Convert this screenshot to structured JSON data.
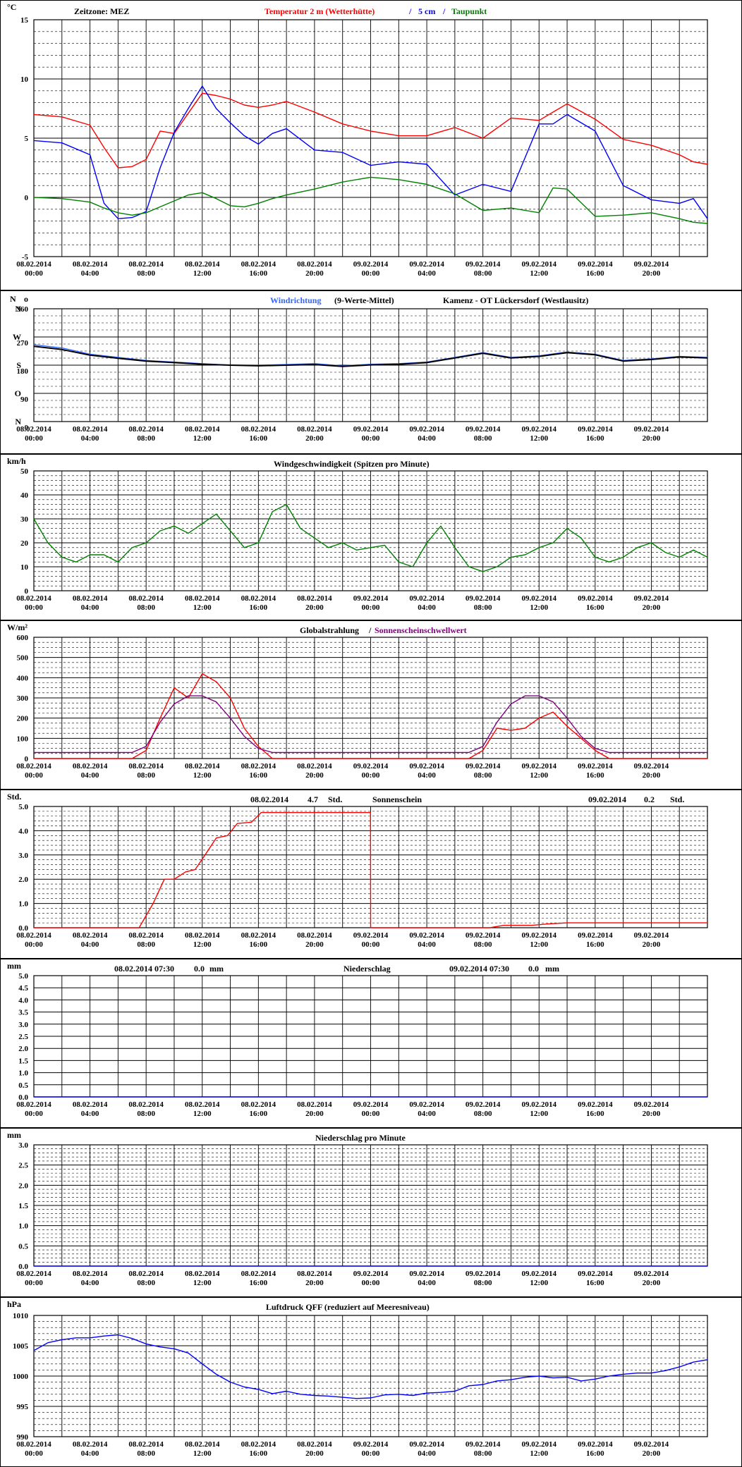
{
  "x_ticks": [
    {
      "date": "08.02.2014",
      "time": "00:00"
    },
    {
      "date": "08.02.2014",
      "time": "04:00"
    },
    {
      "date": "08.02.2014",
      "time": "08:00"
    },
    {
      "date": "08.02.2014",
      "time": "12:00"
    },
    {
      "date": "08.02.2014",
      "time": "16:00"
    },
    {
      "date": "08.02.2014",
      "time": "20:00"
    },
    {
      "date": "09.02.2014",
      "time": "00:00"
    },
    {
      "date": "09.02.2014",
      "time": "04:00"
    },
    {
      "date": "09.02.2014",
      "time": "08:00"
    },
    {
      "date": "09.02.2014",
      "time": "12:00"
    },
    {
      "date": "09.02.2014",
      "time": "16:00"
    },
    {
      "date": "09.02.2014",
      "time": "20:00"
    }
  ],
  "colors": {
    "red": "#ff0000",
    "blue": "#0000ff",
    "green": "#008000",
    "lightblue": "#3366ff",
    "black": "#000000",
    "purple": "#800080"
  },
  "chart_data": [
    {
      "type": "line",
      "unit": "°C",
      "header": {
        "zone": "Zeitzone: MEZ",
        "t2m": "Temperatur 2 m (Wetterhütte)",
        "sep": "/",
        "t5": "5 cm",
        "sep2": "/",
        "dew": "Taupunkt"
      },
      "ylim": [
        -5,
        15
      ],
      "yticks": [
        -5,
        0,
        5,
        10,
        15
      ],
      "x_hours": [
        0,
        2,
        4,
        5,
        6,
        7,
        8,
        9,
        10,
        11,
        12,
        13,
        14,
        15,
        16,
        17,
        18,
        20,
        22,
        24,
        26,
        28,
        30,
        32,
        34,
        36,
        37,
        38,
        40,
        42,
        44,
        46,
        47,
        48
      ],
      "series": [
        {
          "name": "Temperatur 2 m (Wetterhütte)",
          "color": "red",
          "values": [
            7.0,
            6.8,
            6.1,
            4.2,
            2.5,
            2.6,
            3.2,
            5.6,
            5.4,
            7.1,
            8.8,
            8.6,
            8.3,
            7.8,
            7.6,
            7.8,
            8.1,
            7.2,
            6.2,
            5.6,
            5.2,
            5.2,
            5.9,
            5.0,
            6.7,
            6.5,
            7.2,
            7.9,
            6.6,
            4.9,
            4.4,
            3.6,
            3.0,
            2.8
          ]
        },
        {
          "name": "5 cm",
          "color": "blue",
          "values": [
            4.8,
            4.6,
            3.6,
            -0.5,
            -1.8,
            -1.7,
            -1.2,
            2.5,
            5.5,
            7.5,
            9.4,
            7.5,
            6.3,
            5.2,
            4.5,
            5.4,
            5.8,
            4.0,
            3.8,
            2.7,
            3.0,
            2.8,
            0.2,
            1.1,
            0.5,
            6.2,
            6.2,
            7.0,
            5.6,
            1.0,
            -0.2,
            -0.5,
            -0.1,
            -1.8
          ]
        },
        {
          "name": "Taupunkt",
          "color": "green",
          "values": [
            0.0,
            -0.1,
            -0.4,
            -0.9,
            -1.3,
            -1.5,
            -1.3,
            -0.8,
            -0.3,
            0.2,
            0.4,
            -0.1,
            -0.7,
            -0.8,
            -0.5,
            -0.1,
            0.2,
            0.7,
            1.3,
            1.7,
            1.5,
            1.1,
            0.3,
            -1.1,
            -0.9,
            -1.3,
            0.8,
            0.7,
            -1.6,
            -1.5,
            -1.3,
            -1.8,
            -2.1,
            -2.2
          ]
        }
      ]
    },
    {
      "type": "line",
      "unit": "N",
      "unit2": "o",
      "header": {
        "title": "Windrichtung",
        "suffix": "(9-Werte-Mittel)",
        "station": "Kamenz - OT Lückersdorf (Westlausitz)"
      },
      "ylim": [
        0,
        360
      ],
      "yticks": [
        0,
        90,
        180,
        270,
        360
      ],
      "ydirlabels": [
        {
          "v": 0,
          "t": "N"
        },
        {
          "v": 90,
          "t": "O"
        },
        {
          "v": 180,
          "t": "S"
        },
        {
          "v": 270,
          "t": "W"
        },
        {
          "v": 360,
          "t": "N"
        }
      ],
      "x_hours": [
        0,
        2,
        4,
        6,
        8,
        10,
        12,
        14,
        16,
        18,
        20,
        22,
        24,
        26,
        28,
        30,
        32,
        34,
        36,
        38,
        40,
        42,
        44,
        46,
        48
      ],
      "series": [
        {
          "name": "Windrichtung",
          "color": "lightblue",
          "values": [
            245,
            235,
            215,
            205,
            195,
            190,
            185,
            180,
            180,
            182,
            185,
            178,
            183,
            185,
            190,
            205,
            220,
            205,
            210,
            222,
            215,
            195,
            200,
            208,
            205
          ]
        },
        {
          "name": "9-Werte-Mittel",
          "color": "black",
          "values": [
            240,
            230,
            212,
            202,
            193,
            188,
            183,
            180,
            178,
            180,
            182,
            176,
            181,
            183,
            188,
            203,
            218,
            203,
            208,
            220,
            213,
            193,
            198,
            206,
            203
          ]
        }
      ]
    },
    {
      "type": "line",
      "unit": "km/h",
      "header": {
        "title": "Windgeschwindigkeit (Spitzen pro Minute)"
      },
      "ylim": [
        0,
        50
      ],
      "yticks": [
        0,
        10,
        20,
        30,
        40,
        50
      ],
      "x_hours": [
        0,
        1,
        2,
        3,
        4,
        5,
        6,
        7,
        8,
        9,
        10,
        11,
        12,
        13,
        14,
        15,
        16,
        17,
        18,
        19,
        20,
        21,
        22,
        23,
        24,
        25,
        26,
        27,
        28,
        29,
        30,
        31,
        32,
        33,
        34,
        35,
        36,
        37,
        38,
        39,
        40,
        41,
        42,
        43,
        44,
        45,
        46,
        47,
        48
      ],
      "series": [
        {
          "name": "Windgeschwindigkeit",
          "color": "green",
          "values": [
            30,
            20,
            14,
            12,
            15,
            15,
            12,
            18,
            20,
            25,
            27,
            24,
            28,
            32,
            25,
            18,
            20,
            33,
            36,
            26,
            22,
            18,
            20,
            17,
            18,
            19,
            12,
            10,
            20,
            27,
            18,
            10,
            8,
            10,
            14,
            15,
            18,
            20,
            26,
            22,
            14,
            12,
            14,
            18,
            20,
            16,
            14,
            17,
            14
          ]
        }
      ]
    },
    {
      "type": "line",
      "unit": "W/m²",
      "header": {
        "title": "Globalstrahlung",
        "sep": "/",
        "threshold": "Sonnenscheinschwellwert"
      },
      "ylim": [
        0,
        600
      ],
      "yticks": [
        0,
        100,
        200,
        300,
        400,
        500,
        600
      ],
      "x_hours": [
        0,
        7,
        8,
        9,
        10,
        11,
        12,
        13,
        14,
        15,
        16,
        17,
        31,
        32,
        33,
        34,
        35,
        36,
        37,
        38,
        39,
        40,
        41,
        48
      ],
      "series": [
        {
          "name": "Globalstrahlung",
          "color": "red",
          "values": [
            0,
            0,
            40,
            200,
            350,
            300,
            420,
            380,
            300,
            150,
            60,
            0,
            0,
            40,
            150,
            140,
            150,
            200,
            230,
            160,
            100,
            40,
            0,
            0
          ]
        },
        {
          "name": "Sonnenscheinschwellwert",
          "color": "purple",
          "values": [
            30,
            30,
            60,
            180,
            270,
            310,
            310,
            280,
            200,
            110,
            50,
            30,
            30,
            60,
            180,
            270,
            310,
            310,
            280,
            200,
            110,
            50,
            30,
            30
          ]
        }
      ]
    },
    {
      "type": "line",
      "unit": "Std.",
      "header": {
        "title": "Sonnenschein",
        "day1": "08.02.2014",
        "val1": "4.7",
        "unit1": "Std.",
        "day2": "09.02.2014",
        "val2": "0.2",
        "unit2": "Std."
      },
      "ylim": [
        0,
        5
      ],
      "yticks": [
        0,
        1,
        2,
        3,
        4,
        5
      ],
      "x_hours": [
        0,
        7.5,
        8.5,
        9.3,
        10,
        10.8,
        11.5,
        12.2,
        13,
        13.8,
        14.5,
        15.5,
        16.2,
        16.8,
        23.99,
        24,
        32.5,
        33.5,
        34.5,
        35.5,
        36.5,
        38,
        40,
        42,
        48
      ],
      "series": [
        {
          "name": "Sonnenschein",
          "color": "red",
          "values": [
            0,
            0,
            1.0,
            2.0,
            2.0,
            2.3,
            2.4,
            3.0,
            3.7,
            3.8,
            4.3,
            4.35,
            4.75,
            4.75,
            4.75,
            0,
            0,
            0.1,
            0.1,
            0.1,
            0.15,
            0.2,
            0.2,
            0.2,
            0.2
          ]
        }
      ]
    },
    {
      "type": "line",
      "unit": "mm",
      "header": {
        "title": "Niederschlag",
        "day1": "08.02.2014 07:30",
        "val1": "0.0",
        "unit1": "mm",
        "day2": "09.02.2014 07:30",
        "val2": "0.0",
        "unit2": "mm"
      },
      "ylim": [
        0,
        5
      ],
      "yticks": [
        0,
        0.5,
        1,
        1.5,
        2,
        2.5,
        3,
        3.5,
        4,
        4.5,
        5
      ],
      "x_hours": [
        0,
        48
      ],
      "series": [
        {
          "name": "Niederschlag",
          "color": "blue",
          "values": [
            0,
            0
          ]
        }
      ]
    },
    {
      "type": "line",
      "unit": "mm",
      "header": {
        "title": "Niederschlag pro Minute"
      },
      "ylim": [
        0,
        3
      ],
      "yticks": [
        0,
        0.5,
        1,
        1.5,
        2,
        2.5,
        3
      ],
      "x_hours": [
        0,
        48
      ],
      "series": [
        {
          "name": "Niederschlag pro Minute",
          "color": "blue",
          "values": [
            0,
            0
          ]
        }
      ]
    },
    {
      "type": "line",
      "unit": "hPa",
      "header": {
        "title": "Luftdruck QFF (reduziert auf Meeresniveau)"
      },
      "ylim": [
        990,
        1010
      ],
      "yticks": [
        990,
        995,
        1000,
        1005,
        1010
      ],
      "x_hours": [
        0,
        1,
        2,
        3,
        4,
        5,
        6,
        7,
        8,
        9,
        10,
        11,
        12,
        13,
        14,
        15,
        16,
        17,
        18,
        19,
        20,
        21,
        22,
        23,
        24,
        25,
        26,
        27,
        28,
        29,
        30,
        31,
        32,
        33,
        34,
        35,
        36,
        37,
        38,
        39,
        40,
        41,
        42,
        43,
        44,
        45,
        46,
        47,
        48
      ],
      "series": [
        {
          "name": "Luftdruck QFF",
          "color": "blue",
          "values": [
            1004.2,
            1005.5,
            1006.0,
            1006.3,
            1006.3,
            1006.6,
            1006.8,
            1006.2,
            1005.3,
            1004.8,
            1004.5,
            1003.8,
            1002.0,
            1000.3,
            999.0,
            998.2,
            997.8,
            997.1,
            997.5,
            997.0,
            996.8,
            996.7,
            996.5,
            996.3,
            996.4,
            996.9,
            997.0,
            996.8,
            997.2,
            997.3,
            997.5,
            998.4,
            998.6,
            999.2,
            999.4,
            999.8,
            1000.0,
            999.7,
            999.8,
            999.2,
            999.5,
            1000.0,
            1000.3,
            1000.5,
            1000.5,
            1000.9,
            1001.5,
            1002.3,
            1002.7
          ]
        }
      ]
    }
  ]
}
